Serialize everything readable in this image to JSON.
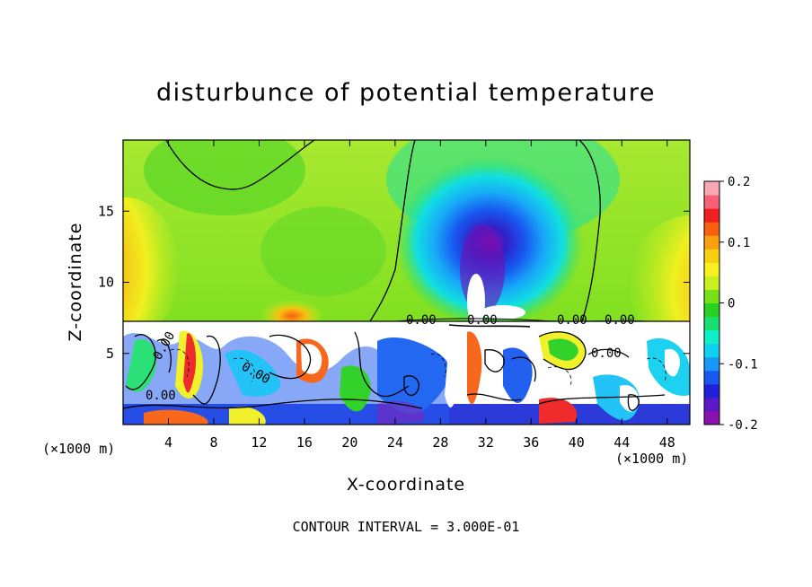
{
  "chart_data": {
    "type": "heatmap",
    "title": "disturbunce of potential temperature",
    "xlabel": "X-coordinate",
    "ylabel": "Z-coordinate",
    "x_unit_left": "(×1000 m)",
    "x_unit_right": "(×1000 m)",
    "xlim": [
      0,
      50
    ],
    "ylim": [
      0,
      20
    ],
    "x_ticks": [
      4,
      8,
      12,
      16,
      20,
      24,
      28,
      32,
      36,
      40,
      44,
      48
    ],
    "y_ticks": [
      5,
      10,
      15
    ],
    "colorbar": {
      "ticks": [
        "0.2",
        "0.1",
        "0",
        "-0.1",
        "-0.2"
      ],
      "tick_values": [
        0.2,
        0.1,
        0,
        -0.1,
        -0.2
      ],
      "range": [
        -0.2,
        0.2
      ],
      "colors": [
        "#8a10b0",
        "#5a18c8",
        "#2020d8",
        "#1858f0",
        "#1898f8",
        "#10d0f0",
        "#10f0c8",
        "#18e070",
        "#28d020",
        "#78e018",
        "#c8f020",
        "#f8f020",
        "#f8d010",
        "#f8a010",
        "#f86010",
        "#f02020",
        "#f86078",
        "#f8a8b0"
      ]
    },
    "contour_labels": [
      "0.00",
      "0.00",
      "0.00",
      "0.00",
      "0.00",
      "0.00",
      "0.00",
      "0.00"
    ],
    "footer": "CONTOUR INTERVAL = 3.000E-01"
  }
}
